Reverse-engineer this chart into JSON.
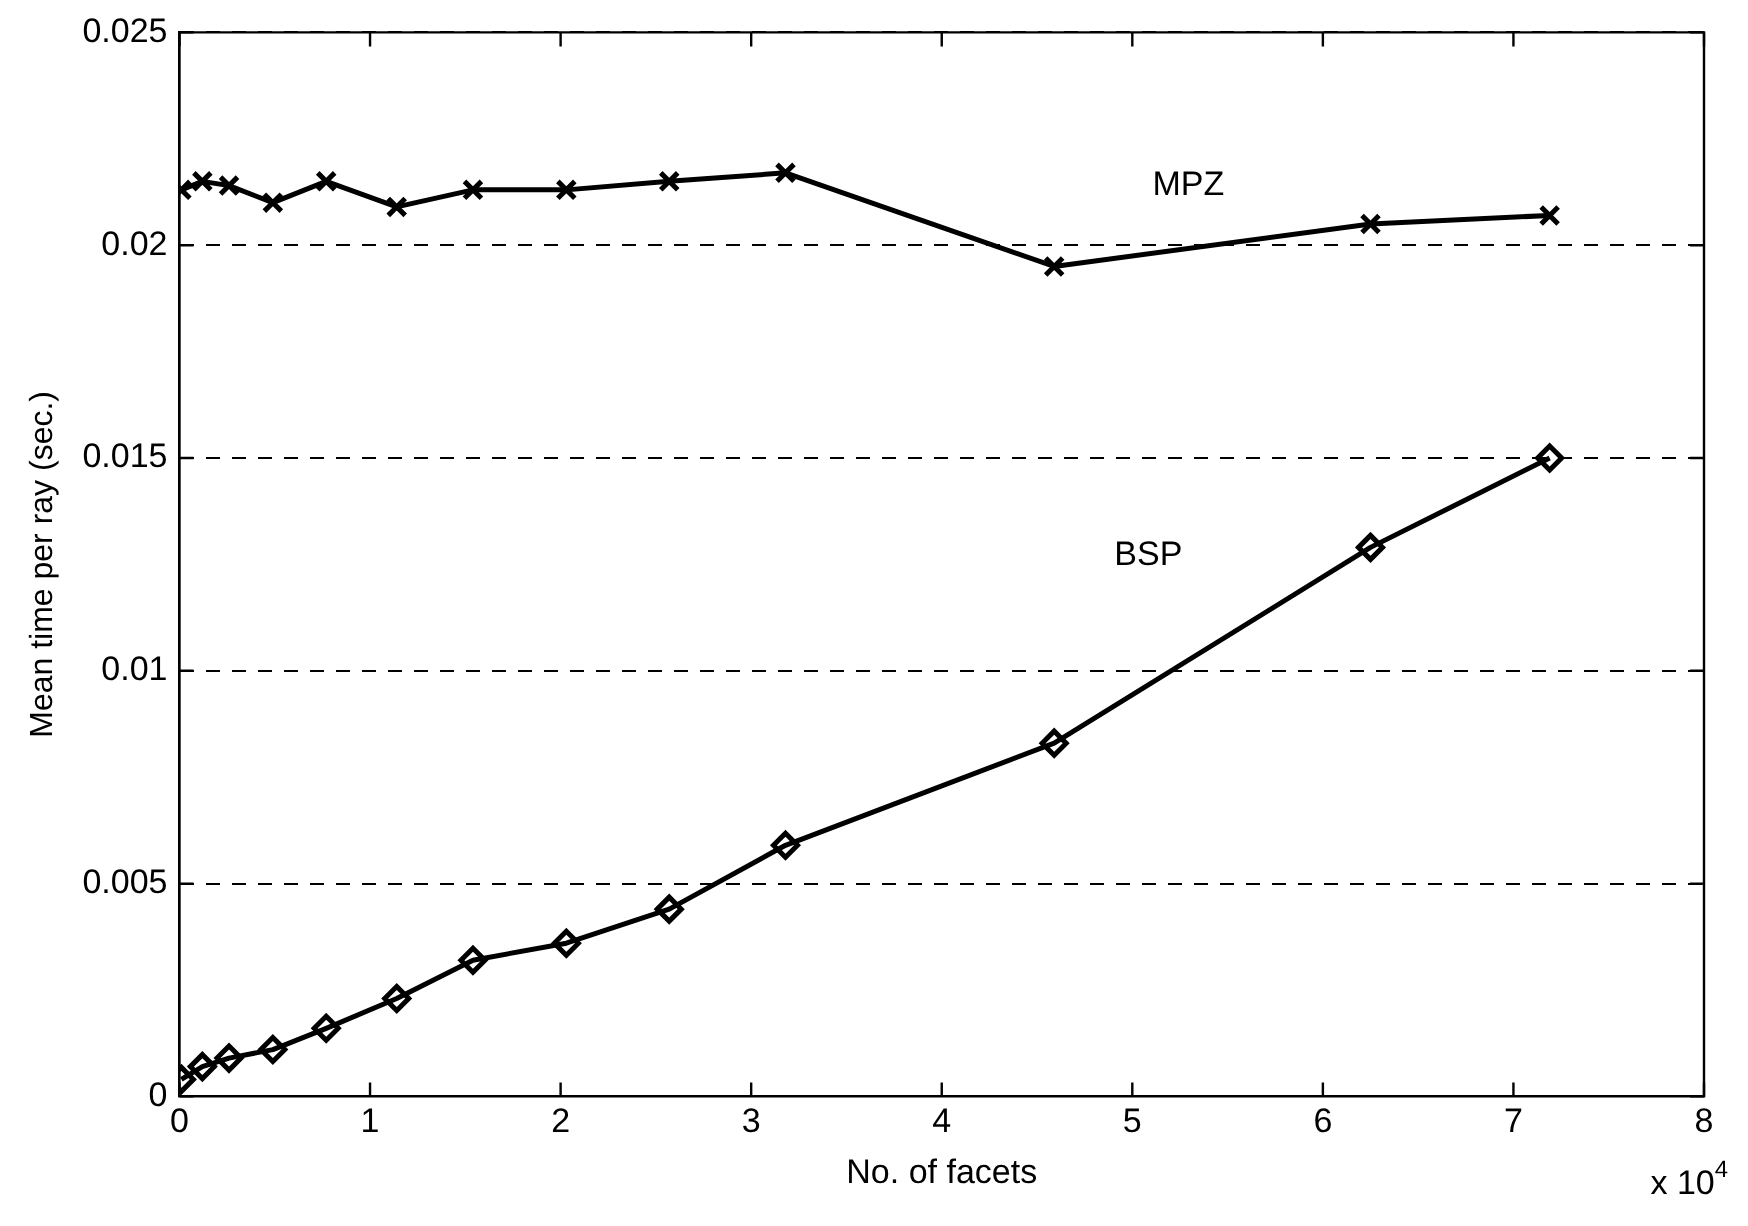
{
  "chart_data": {
    "type": "line",
    "xlabel": "No. of facets",
    "ylabel": "Mean time per ray (sec.)",
    "xlim": [
      0,
      8
    ],
    "xticks": [
      0,
      1,
      2,
      3,
      4,
      5,
      6,
      7,
      8
    ],
    "ylim": [
      0,
      0.025
    ],
    "yticks": [
      0,
      0.005,
      0.01,
      0.015,
      0.02,
      0.025
    ],
    "grid": "y",
    "line_style": "solid",
    "series": [
      {
        "name": "MPZ",
        "color": "#000000",
        "marker": "cross",
        "x": [
          0.01,
          0.12,
          0.26,
          0.49,
          0.77,
          1.14,
          1.54,
          2.03,
          2.57,
          3.18,
          4.59,
          6.25,
          7.19
        ],
        "values": [
          0.0213,
          0.0215,
          0.0214,
          0.021,
          0.0215,
          0.0209,
          0.0213,
          0.0213,
          0.0215,
          0.0217,
          0.0195,
          0.0205,
          0.0207
        ]
      },
      {
        "name": "BSP",
        "color": "#000000",
        "marker": "diamond",
        "x": [
          0.01,
          0.12,
          0.26,
          0.49,
          0.77,
          1.14,
          1.54,
          2.03,
          2.57,
          3.18,
          4.59,
          6.25,
          7.19
        ],
        "values": [
          0.0004,
          0.0007,
          0.0009,
          0.0011,
          0.0016,
          0.0023,
          0.0032,
          0.0036,
          0.0044,
          0.0059,
          0.0083,
          0.0129,
          0.015
        ]
      }
    ],
    "annotations": [
      "x 10$^{4}$"
    ]
  }
}
